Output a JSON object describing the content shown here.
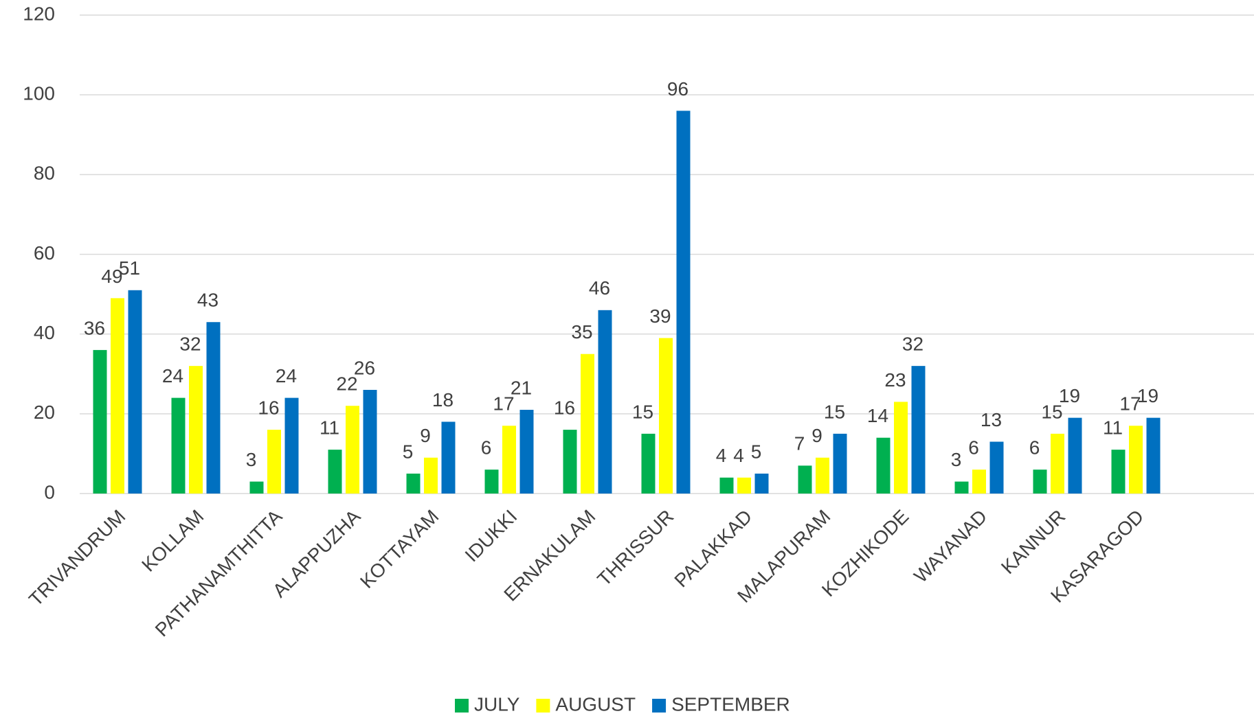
{
  "chart_data": {
    "type": "bar",
    "categories": [
      "TRIVANDRUM",
      "KOLLAM",
      "PATHANAMTHITTA",
      "ALAPPUZHA",
      "KOTTAYAM",
      "IDUKKI",
      "ERNAKULAM",
      "THRISSUR",
      "PALAKKAD",
      "MALAPURAM",
      "KOZHIKODE",
      "WAYANAD",
      "KANNUR",
      "KASARAGOD"
    ],
    "series": [
      {
        "name": "JULY",
        "color": "#00b050",
        "values": [
          36,
          24,
          3,
          11,
          5,
          6,
          16,
          15,
          4,
          7,
          14,
          3,
          6,
          11
        ]
      },
      {
        "name": "AUGUST",
        "color": "#ffff00",
        "values": [
          49,
          32,
          16,
          22,
          9,
          17,
          35,
          39,
          4,
          9,
          23,
          6,
          15,
          17
        ]
      },
      {
        "name": "SEPTEMBER",
        "color": "#0070c0",
        "values": [
          51,
          43,
          24,
          26,
          18,
          21,
          46,
          96,
          5,
          15,
          32,
          13,
          19,
          19
        ]
      }
    ],
    "ylim": [
      0,
      120
    ],
    "yticks": [
      0,
      20,
      40,
      60,
      80,
      100,
      120
    ],
    "grid": true,
    "legend": "bottom"
  }
}
